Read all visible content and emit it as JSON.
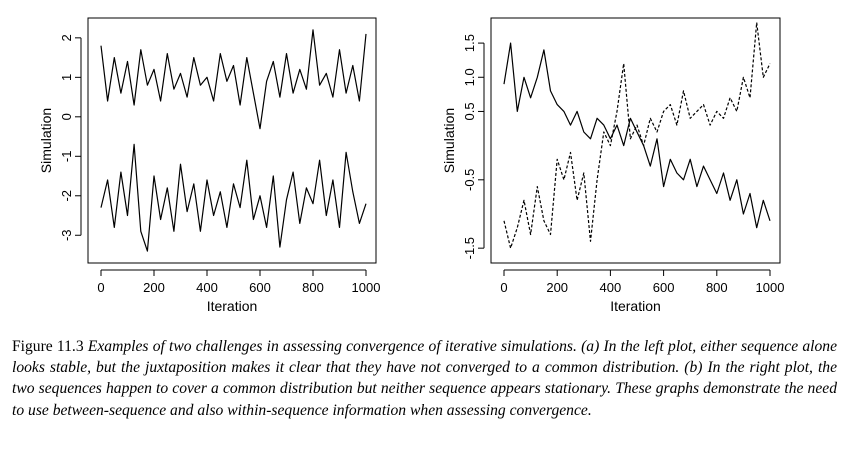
{
  "chart_data": [
    {
      "type": "line",
      "xlabel": "Iteration",
      "ylabel": "Simulation",
      "xlim": [
        0,
        1000
      ],
      "ylim": [
        -3.5,
        2.3
      ],
      "xticks": [
        "0",
        "200",
        "400",
        "600",
        "800",
        "1000"
      ],
      "yticks": [
        "-3",
        "-2",
        "-1",
        "0",
        "1",
        "2"
      ],
      "series": [
        {
          "line_style": "solid",
          "x": [
            0,
            25,
            50,
            75,
            100,
            125,
            150,
            175,
            200,
            225,
            250,
            275,
            300,
            325,
            350,
            375,
            400,
            425,
            450,
            475,
            500,
            525,
            550,
            575,
            600,
            625,
            650,
            675,
            700,
            725,
            750,
            775,
            800,
            825,
            850,
            875,
            900,
            925,
            950,
            975,
            1000
          ],
          "values": [
            1.8,
            0.4,
            1.5,
            0.6,
            1.4,
            0.3,
            1.7,
            0.8,
            1.2,
            0.4,
            1.6,
            0.7,
            1.1,
            0.5,
            1.5,
            0.8,
            1.0,
            0.4,
            1.6,
            0.9,
            1.3,
            0.3,
            1.5,
            0.6,
            -0.3,
            0.9,
            1.4,
            0.5,
            1.6,
            0.6,
            1.2,
            0.7,
            2.2,
            0.8,
            1.1,
            0.5,
            1.7,
            0.6,
            1.3,
            0.4,
            2.1
          ]
        },
        {
          "line_style": "solid",
          "x": [
            0,
            25,
            50,
            75,
            100,
            125,
            150,
            175,
            200,
            225,
            250,
            275,
            300,
            325,
            350,
            375,
            400,
            425,
            450,
            475,
            500,
            525,
            550,
            575,
            600,
            625,
            650,
            675,
            700,
            725,
            750,
            775,
            800,
            825,
            850,
            875,
            900,
            925,
            950,
            975,
            1000
          ],
          "values": [
            -2.3,
            -1.6,
            -2.8,
            -1.4,
            -2.5,
            -0.7,
            -2.9,
            -3.4,
            -1.5,
            -2.6,
            -1.8,
            -2.9,
            -1.2,
            -2.4,
            -1.7,
            -2.9,
            -1.6,
            -2.5,
            -1.9,
            -2.8,
            -1.7,
            -2.3,
            -1.1,
            -2.6,
            -2.0,
            -2.8,
            -1.5,
            -3.3,
            -2.1,
            -1.4,
            -2.7,
            -1.8,
            -2.2,
            -1.1,
            -2.5,
            -1.6,
            -2.8,
            -0.9,
            -1.9,
            -2.7,
            -2.2
          ]
        }
      ]
    },
    {
      "type": "line",
      "xlabel": "Iteration",
      "ylabel": "Simulation",
      "xlim": [
        0,
        1000
      ],
      "ylim": [
        -1.6,
        1.75
      ],
      "xticks": [
        "0",
        "200",
        "400",
        "600",
        "800",
        "1000"
      ],
      "yticks": [
        "-1.5",
        "-0.5",
        "0.5",
        "1.0",
        "1.5"
      ],
      "series": [
        {
          "line_style": "solid",
          "x": [
            0,
            25,
            50,
            75,
            100,
            125,
            150,
            175,
            200,
            225,
            250,
            275,
            300,
            325,
            350,
            375,
            400,
            425,
            450,
            475,
            500,
            525,
            550,
            575,
            600,
            625,
            650,
            675,
            700,
            725,
            750,
            775,
            800,
            825,
            850,
            875,
            900,
            925,
            950,
            975,
            1000
          ],
          "values": [
            0.9,
            1.5,
            0.5,
            1.0,
            0.7,
            1.0,
            1.4,
            0.8,
            0.6,
            0.5,
            0.3,
            0.5,
            0.2,
            0.1,
            0.4,
            0.3,
            0.1,
            0.3,
            0.0,
            0.4,
            0.2,
            0.0,
            -0.3,
            0.1,
            -0.6,
            -0.2,
            -0.4,
            -0.5,
            -0.2,
            -0.6,
            -0.3,
            -0.5,
            -0.7,
            -0.4,
            -0.8,
            -0.5,
            -1.0,
            -0.7,
            -1.2,
            -0.8,
            -1.1
          ]
        },
        {
          "line_style": "dashed",
          "x": [
            0,
            25,
            50,
            75,
            100,
            125,
            150,
            175,
            200,
            225,
            250,
            275,
            300,
            325,
            350,
            375,
            400,
            425,
            450,
            475,
            500,
            525,
            550,
            575,
            600,
            625,
            650,
            675,
            700,
            725,
            750,
            775,
            800,
            825,
            850,
            875,
            900,
            925,
            950,
            975,
            1000
          ],
          "values": [
            -1.1,
            -1.5,
            -1.2,
            -0.8,
            -1.3,
            -0.6,
            -1.1,
            -1.3,
            -0.2,
            -0.5,
            -0.1,
            -0.8,
            -0.4,
            -1.4,
            -0.5,
            0.2,
            0.0,
            0.5,
            1.2,
            0.1,
            0.3,
            0.0,
            0.4,
            0.2,
            0.5,
            0.6,
            0.3,
            0.8,
            0.4,
            0.5,
            0.6,
            0.3,
            0.5,
            0.4,
            0.7,
            0.5,
            1.0,
            0.7,
            1.8,
            1.0,
            1.2
          ]
        }
      ]
    }
  ],
  "caption": {
    "label": "Figure 11.3",
    "text": "Examples of two challenges in assessing convergence of iterative simulations. (a) In the left plot, either sequence alone looks stable, but the juxtaposition makes it clear that they have not converged to a common distribution. (b) In the right plot, the two sequences happen to cover a common distribution but neither sequence appears stationary. These graphs demonstrate the need to use between-sequence and also within-sequence information when assessing convergence."
  }
}
